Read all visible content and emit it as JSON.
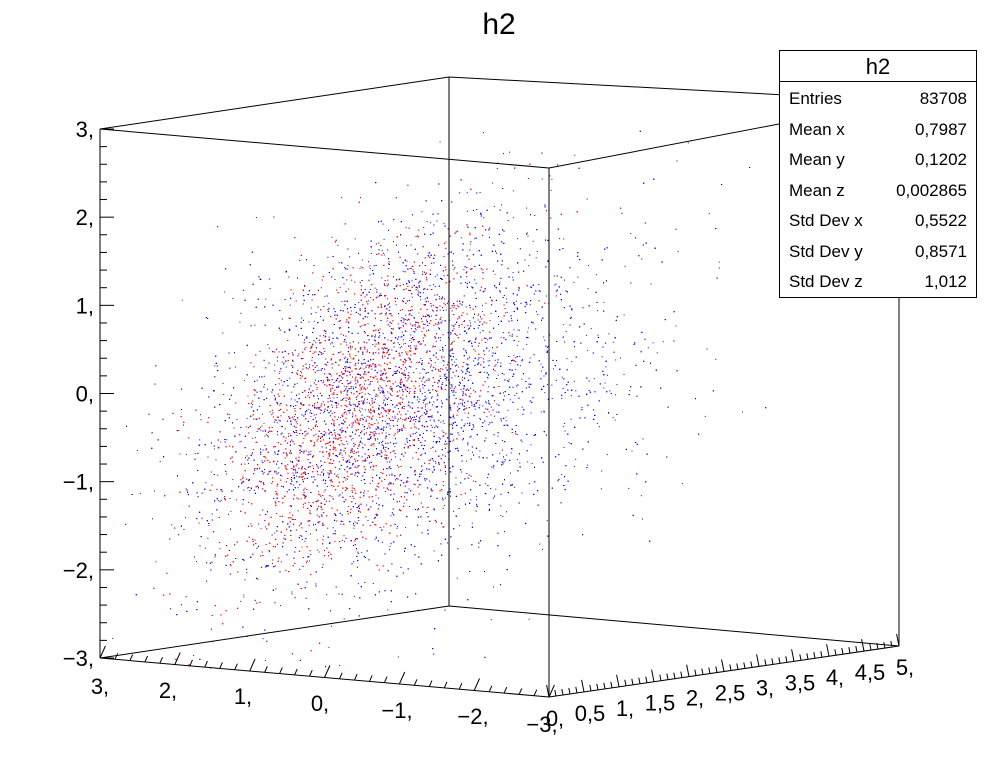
{
  "chart_data": {
    "type": "scatter",
    "title": "h2",
    "dimensions": 3,
    "x_axis": {
      "range": [
        -3,
        3
      ],
      "tick_labels": [
        "3,",
        "2,",
        "1,",
        "0,",
        "−1,",
        "−2,",
        "−3,"
      ]
    },
    "y_axis": {
      "range": [
        0,
        5
      ],
      "tick_labels": [
        "0,",
        "0,5",
        "1,",
        "1,5",
        "2,",
        "2,5",
        "3,",
        "3,5",
        "4,",
        "4,5",
        "5,"
      ]
    },
    "z_axis": {
      "range": [
        -3,
        3
      ],
      "tick_labels": [
        "3,",
        "2,",
        "1,",
        "0,",
        "−1,",
        "−2,",
        "−3,"
      ]
    },
    "series": [
      {
        "color": "#0000ff",
        "distribution": "3D scatter, broad cloud"
      },
      {
        "color": "#ff0000",
        "distribution": "3D scatter, concentrated cloud"
      }
    ],
    "stats_box": {
      "title": "h2",
      "rows": [
        {
          "label": "Entries",
          "value": "83708"
        },
        {
          "label": "Mean x",
          "value": "0,7987"
        },
        {
          "label": "Mean y",
          "value": "0,1202"
        },
        {
          "label": "Mean z",
          "value": "0,002865"
        },
        {
          "label": "Std Dev x",
          "value": "0,5522"
        },
        {
          "label": "Std Dev y",
          "value": "0,8571"
        },
        {
          "label": "Std Dev z",
          "value": "1,012"
        }
      ]
    },
    "grid": false,
    "legend_placement": "top-right"
  }
}
